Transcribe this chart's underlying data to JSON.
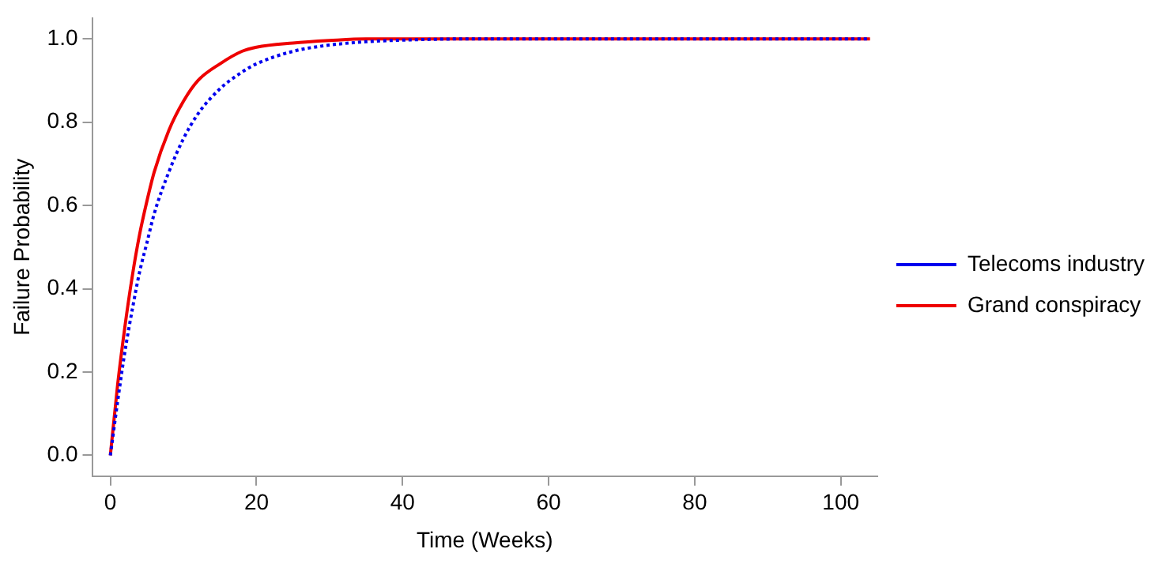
{
  "chart_data": {
    "type": "line",
    "xlabel": "Time (Weeks)",
    "ylabel": "Failure Probability",
    "x": [
      0,
      1,
      2,
      3,
      4,
      5,
      6,
      8,
      10,
      12,
      15,
      18,
      20,
      25,
      30,
      35,
      40,
      50,
      60,
      80,
      104
    ],
    "series": [
      {
        "name": "Telecoms industry",
        "color": "#0000ee",
        "line_style": "dotted",
        "values": [
          0,
          0.13,
          0.25,
          0.35,
          0.44,
          0.51,
          0.58,
          0.68,
          0.76,
          0.82,
          0.88,
          0.92,
          0.94,
          0.97,
          0.985,
          0.993,
          0.997,
          1,
          1,
          1,
          1
        ]
      },
      {
        "name": "Grand conspiracy",
        "color": "#ee0000",
        "line_style": "solid",
        "values": [
          0,
          0.17,
          0.31,
          0.43,
          0.53,
          0.61,
          0.68,
          0.78,
          0.85,
          0.9,
          0.94,
          0.97,
          0.98,
          0.99,
          0.996,
          1,
          1,
          1,
          1,
          1,
          1
        ]
      }
    ],
    "xlim": [
      -2.5,
      105
    ],
    "xticks": [
      0,
      20,
      40,
      60,
      80,
      100
    ],
    "ylim": [
      -0.05,
      1.05
    ],
    "yticks": [
      {
        "value": 0,
        "label": "0.0"
      },
      0.2,
      0.4,
      0.6,
      0.8,
      {
        "value": 1,
        "label": "1.0"
      }
    ],
    "grid": false,
    "legend": "right",
    "marker": "none"
  }
}
